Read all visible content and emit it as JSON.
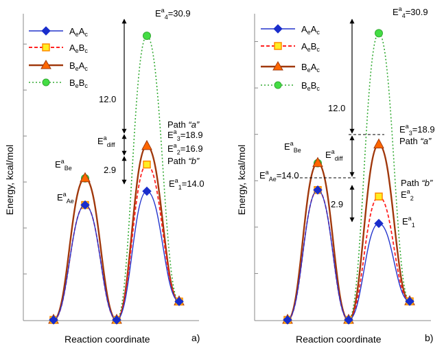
{
  "colors": {
    "AeAc": "#2233cc",
    "AeBc": "#ff2020",
    "AeBc_marker_fill": "#ffee22",
    "AeBc_marker_edge": "#ff8800",
    "BeAc": "#a0380c",
    "BeAc_marker": "#ff6600",
    "BeBc": "#33aa33",
    "BeBc_marker": "#44dd44",
    "guides": "#000000"
  },
  "chart_data": [
    {
      "panel": "a)",
      "type": "line",
      "xlabel": "Reaction coordinate",
      "ylabel": "Energy, kcal/mol",
      "ylim": [
        0,
        33
      ],
      "grid": false,
      "legend_position": "top-left",
      "x": [
        0,
        1,
        2,
        3,
        4
      ],
      "series": [
        {
          "key": "AeAc",
          "name_main": "A",
          "name_sub1": "e",
          "name_mid": "A",
          "name_sub2": "c",
          "style": "solid",
          "marker": "diamond",
          "values": [
            0,
            12.5,
            0,
            14.0,
            2.0
          ]
        },
        {
          "key": "AeBc",
          "name_main": "A",
          "name_sub1": "e",
          "name_mid": "B",
          "name_sub2": "c",
          "style": "dashed",
          "marker": "square",
          "values": [
            0,
            12.5,
            0,
            16.9,
            2.0
          ]
        },
        {
          "key": "BeAc",
          "name_main": "B",
          "name_sub1": "e",
          "name_mid": "A",
          "name_sub2": "c",
          "style": "solid-thick",
          "marker": "triangle",
          "values": [
            0,
            15.4,
            0,
            18.9,
            2.0
          ]
        },
        {
          "key": "BeBc",
          "name_main": "B",
          "name_sub1": "e",
          "name_mid": "B",
          "name_sub2": "c",
          "style": "dotted",
          "marker": "circle",
          "values": [
            0,
            15.4,
            0,
            30.9,
            2.0
          ]
        }
      ],
      "annotations": {
        "ea_be": {
          "E": "E",
          "sup": "a",
          "sub": "Be"
        },
        "ea_ae": {
          "E": "E",
          "sup": "a",
          "sub": "Ae"
        },
        "e4": {
          "E": "E",
          "sup": "a",
          "sub": "4",
          "value": "=30.9"
        },
        "e3": {
          "E": "E",
          "sup": "a",
          "sub": "3",
          "value": "=18.9"
        },
        "e2": {
          "E": "E",
          "sup": "a",
          "sub": "2",
          "value": "=16.9"
        },
        "e1": {
          "E": "E",
          "sup": "a",
          "sub": "1",
          "value": "=14.0"
        },
        "ediff": {
          "E": "E",
          "sup": "a",
          "sub": "diff"
        },
        "gap_12": "12.0",
        "gap_29": "2.9",
        "path_a": {
          "prefix": "Path ",
          "quoted": "“a”"
        },
        "path_b": {
          "prefix": "Path ",
          "quoted": "“b”"
        }
      }
    },
    {
      "panel": "b)",
      "type": "line",
      "xlabel": "Reaction coordinate",
      "ylabel": "Energy, kcal/mol",
      "ylim": [
        0,
        33
      ],
      "grid": false,
      "legend_position": "top-left",
      "x": [
        0,
        1,
        2,
        3,
        4
      ],
      "series": [
        {
          "key": "AeAc",
          "name_main": "A",
          "name_sub1": "e",
          "name_mid": "A",
          "name_sub2": "c",
          "style": "solid",
          "marker": "diamond",
          "values": [
            0,
            14.0,
            0,
            10.4,
            2.0
          ]
        },
        {
          "key": "AeBc",
          "name_main": "A",
          "name_sub1": "e",
          "name_mid": "B",
          "name_sub2": "c",
          "style": "dashed",
          "marker": "square",
          "values": [
            0,
            14.0,
            0,
            13.3,
            2.0
          ]
        },
        {
          "key": "BeAc",
          "name_main": "B",
          "name_sub1": "e",
          "name_mid": "A",
          "name_sub2": "c",
          "style": "solid-thick",
          "marker": "triangle",
          "values": [
            0,
            16.9,
            0,
            18.9,
            2.0
          ]
        },
        {
          "key": "BeBc",
          "name_main": "B",
          "name_sub1": "e",
          "name_mid": "B",
          "name_sub2": "c",
          "style": "dotted",
          "marker": "circle",
          "values": [
            0,
            16.9,
            0,
            30.9,
            2.0
          ]
        }
      ],
      "annotations": {
        "ea_be": {
          "E": "E",
          "sup": "a",
          "sub": "Be"
        },
        "ea_ae": {
          "E": "E",
          "sup": "a",
          "sub": "Ae",
          "value": "=14.0"
        },
        "e4": {
          "E": "E",
          "sup": "a",
          "sub": "4",
          "value": "=30.9"
        },
        "e3": {
          "E": "E",
          "sup": "a",
          "sub": "3",
          "value": "=18.9"
        },
        "e2": {
          "E": "E",
          "sup": "a",
          "sub": "2"
        },
        "e1": {
          "E": "E",
          "sup": "a",
          "sub": "1"
        },
        "ediff": {
          "E": "E",
          "sup": "a",
          "sub": "diff"
        },
        "gap_12": "12.0",
        "gap_29": "2.9",
        "path_a": {
          "prefix": "Path ",
          "quoted": "“a”"
        },
        "path_b": {
          "prefix": "Path ",
          "quoted": "“b”"
        }
      }
    }
  ]
}
